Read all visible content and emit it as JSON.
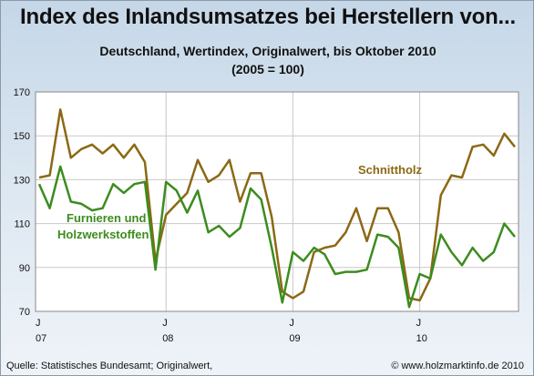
{
  "title": "Index des Inlandsumsatzes bei Herstellern von...",
  "subtitle": "Deutschland, Wertindex, Originalwert, bis Oktober 2010",
  "subtitle2": "(2005 = 100)",
  "source": "Quelle: Statistisches Bundesamt; Originalwert,",
  "credit": "© www.holzmarktinfo.de 2010",
  "colors": {
    "schnittholz": "#8b6914",
    "furniere": "#3c8c1e",
    "grid": "#c8c8c8"
  },
  "chart_data": {
    "type": "line",
    "ylim": [
      70,
      170
    ],
    "yticks": [
      70,
      90,
      110,
      130,
      150,
      170
    ],
    "xticks": [
      {
        "index": 0,
        "month": "J",
        "year": "07"
      },
      {
        "index": 12,
        "month": "J",
        "year": "08"
      },
      {
        "index": 24,
        "month": "J",
        "year": "09"
      },
      {
        "index": 36,
        "month": "J",
        "year": "10"
      }
    ],
    "x": [
      "2007-01",
      "2007-02",
      "2007-03",
      "2007-04",
      "2007-05",
      "2007-06",
      "2007-07",
      "2007-08",
      "2007-09",
      "2007-10",
      "2007-11",
      "2007-12",
      "2008-01",
      "2008-02",
      "2008-03",
      "2008-04",
      "2008-05",
      "2008-06",
      "2008-07",
      "2008-08",
      "2008-09",
      "2008-10",
      "2008-11",
      "2008-12",
      "2009-01",
      "2009-02",
      "2009-03",
      "2009-04",
      "2009-05",
      "2009-06",
      "2009-07",
      "2009-08",
      "2009-09",
      "2009-10",
      "2009-11",
      "2009-12",
      "2010-01",
      "2010-02",
      "2010-03",
      "2010-04",
      "2010-05",
      "2010-06",
      "2010-07",
      "2010-08",
      "2010-09",
      "2010-10"
    ],
    "series": [
      {
        "name": "Schnittholz",
        "values": [
          131,
          132,
          162,
          140,
          144,
          146,
          142,
          146,
          140,
          146,
          138,
          93,
          114,
          119,
          124,
          139,
          129,
          132,
          139,
          120,
          133,
          133,
          113,
          79,
          76,
          79,
          97,
          99,
          100,
          106,
          117,
          102,
          117,
          117,
          106,
          76,
          75,
          85,
          123,
          132,
          131,
          145,
          146,
          141,
          151,
          145
        ]
      },
      {
        "name": "Furnieren und Holzwerkstoffen",
        "values": [
          128,
          117,
          136,
          120,
          119,
          116,
          117,
          128,
          124,
          128,
          129,
          89,
          129,
          125,
          115,
          125,
          106,
          109,
          104,
          108,
          126,
          121,
          99,
          74,
          97,
          93,
          99,
          96,
          87,
          88,
          88,
          89,
          105,
          104,
          99,
          72,
          87,
          85,
          105,
          97,
          91,
          99,
          93,
          97,
          110,
          104
        ]
      }
    ]
  }
}
